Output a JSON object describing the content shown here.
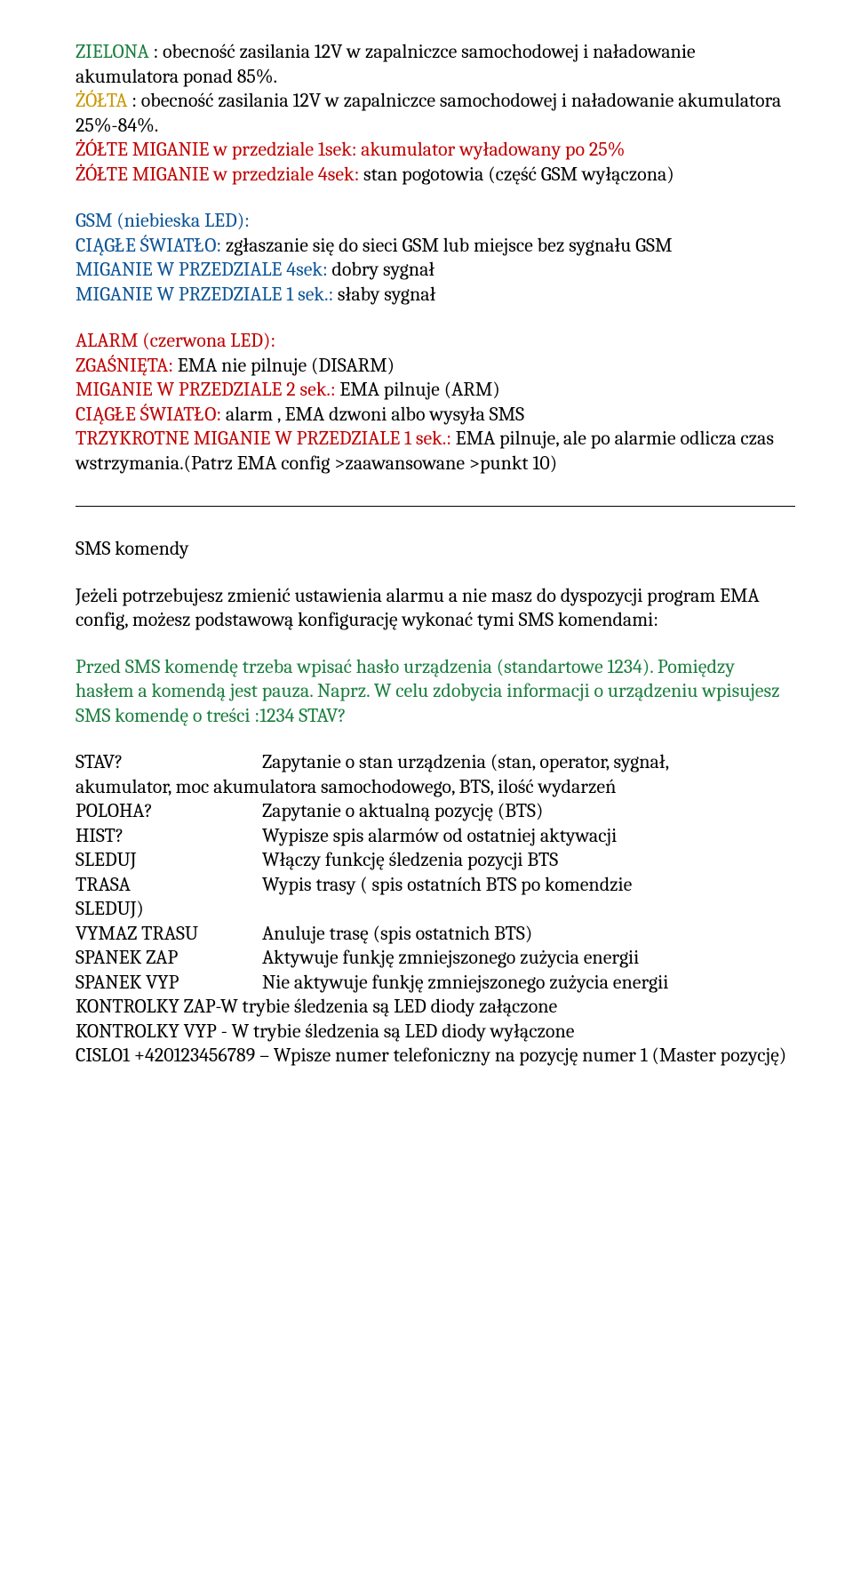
{
  "p1a": "ZIELONA ",
  "p1b": ": obecność zasilania 12V w zapalniczce samochodowej i naładowanie akumulatora ponad 85%.",
  "p2a": "ŻÓŁTA ",
  "p2b": ": obecność zasilania 12V w zapalniczce samochodowej i naładowanie akumulatora 25%-84%.",
  "p3": "ŻÓŁTE MIGANIE w przedziale 1sek: akumulator wyładowany po 25%",
  "p4a": "ŻÓŁTE MIGANIE w przedziale 4sek:",
  "p4b": " stan pogotowia (część GSM wyłączona)",
  "p5": "GSM (niebieska LED):",
  "p6a": "CIĄGŁE ŚWIATŁO:",
  "p6b": " zgłaszanie się do sieci GSM lub miejsce bez sygnału GSM",
  "p7a": "MIGANIE W PRZEDZIALE 4sek:",
  "p7b": " dobry sygnał",
  "p8a": "MIGANIE W PRZEDZIALE 1 sek.:",
  "p8b": " słaby sygnał",
  "p9": "ALARM (czerwona LED):",
  "p10a": "ZGAŚNIĘTA:",
  "p10b": " EMA nie pilnuje (DISARM)",
  "p11a": "MIGANIE W PRZEDZIALE 2 sek.:",
  "p11b": " EMA pilnuje (ARM)",
  "p12a": "CIĄGŁE ŚWIATŁO:",
  "p12b": " alarm , EMA dzwoni albo wysyła SMS",
  "p13a": "TRZYKROTNE MIGANIE W PRZEDZIALE 1 sek.:",
  "p13b": " EMA pilnuje, ale po alarmie odlicza czas wstrzymania.(Patrz EMA config >zaawansowane >punkt 10)",
  "s1": "SMS komendy",
  "s2": "Jeżeli potrzebujesz zmienić ustawienia alarmu a nie masz do dyspozycji program EMA config, możesz podstawową konfigurację wykonać tymi SMS komendami:",
  "s3": "Przed SMS komendę trzeba wpisać hasło urządzenia (standartowe 1234). Pomiędzy hasłem a komendą jest pauza. Naprz. W celu zdobycia informacji o urządzeniu wpisujesz SMS komendę o treści :1234 STAV?",
  "c": [
    {
      "k": "STAV?",
      "v": "Zapytanie o stan urządzenia (stan, operator, sygnał,",
      "cont": "akumulator, moc akumulatora samochodowego, BTS, ilość wydarzeń"
    },
    {
      "k": "POLOHA?",
      "v": "Zapytanie o aktualną pozycję (BTS)"
    },
    {
      "k": "HIST?",
      "v": "Wypisze spis alarmów od ostatniej aktywacji"
    },
    {
      "k": "SLEDUJ",
      "v": "Włączy funkcję śledzenia pozycji BTS"
    },
    {
      "k": "TRASA",
      "v": "Wypis trasy ( spis ostatních BTS po komendzie",
      "cont": "SLEDUJ)"
    },
    {
      "k": "VYMAZ TRASU",
      "v": "Anuluje trasę (spis ostatnich BTS)"
    },
    {
      "k": "SPANEK ZAP",
      "v": "Aktywuje funkję zmniejszonego zużycia energii"
    },
    {
      "k": "SPANEK VYP",
      "v": "Nie aktywuje funkję zmniejszonego zużycia energii"
    }
  ],
  "t1": "KONTROLKY ZAP-W trybie śledzenia są LED diody załączone",
  "t2": "KONTROLKY VYP - W trybie śledzenia są LED diody wyłączone",
  "t3": "CISLO1 +420123456789 – Wpisze numer telefoniczny na pozycję numer 1 (Master pozycję)"
}
